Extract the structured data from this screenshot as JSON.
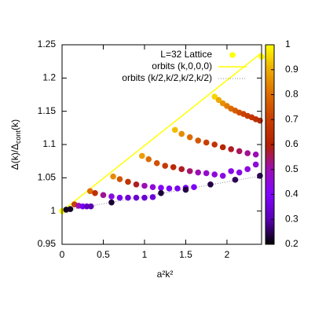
{
  "chart_data": {
    "type": "scatter",
    "xlabel": "a²k²",
    "ylabel": [
      "Δ(k)/Δ",
      "cont",
      "(k)"
    ],
    "xlim": [
      0,
      2.42
    ],
    "xticks": [
      0,
      0.5,
      1,
      1.5,
      2
    ],
    "ylim": [
      0.95,
      1.25
    ],
    "yticks": [
      0.95,
      1,
      1.05,
      1.1,
      1.15,
      1.2,
      1.25
    ],
    "cblim": [
      0.2,
      1
    ],
    "cbticks": [
      0.2,
      0.3,
      0.4,
      0.5,
      0.6,
      0.7,
      0.8,
      0.9,
      1
    ],
    "colormap": [
      "#000000",
      "#5a00b4",
      "#8004ff",
      "#9c0eb4",
      "#b42000",
      "#c93e00",
      "#dd6b00",
      "#eeab00",
      "#ffff00"
    ],
    "legend": "top-right",
    "series": [
      {
        "name": "L=32 Lattice",
        "color": "#ffff00",
        "x": [
          0,
          1.85,
          1.9,
          1.95,
          2.0,
          2.05,
          2.1,
          2.15,
          2.2,
          2.25,
          2.3,
          2.35,
          2.4,
          1.37,
          1.45,
          1.55,
          1.65,
          1.75,
          1.85,
          1.95,
          2.05,
          2.15,
          2.25,
          2.35,
          0.97,
          1.05,
          1.15,
          1.25,
          1.35,
          1.45,
          1.55,
          1.65,
          1.75,
          1.85,
          1.95,
          2.05,
          2.15,
          2.25,
          2.35,
          0.62,
          0.7,
          0.8,
          0.9,
          1.0,
          1.1,
          1.2,
          1.3,
          1.4,
          1.5,
          1.6,
          0.34,
          0.4,
          0.5,
          0.6,
          0.7,
          0.8,
          0.9,
          1.0,
          1.1,
          0.15,
          0.2,
          0.25,
          0.3,
          0.35,
          0.05,
          0.1,
          0.6,
          1.2,
          1.5,
          1.8,
          2.1,
          2.4,
          2.42
        ],
        "y": [
          1.0,
          1.172,
          1.167,
          1.162,
          1.158,
          1.154,
          1.151,
          1.148,
          1.146,
          1.143,
          1.141,
          1.138,
          1.136,
          1.122,
          1.116,
          1.111,
          1.106,
          1.103,
          1.1,
          1.096,
          1.093,
          1.09,
          1.087,
          1.085,
          1.083,
          1.078,
          1.072,
          1.068,
          1.066,
          1.063,
          1.06,
          1.058,
          1.057,
          1.055,
          1.053,
          1.06,
          1.058,
          1.063,
          1.07,
          1.052,
          1.048,
          1.044,
          1.04,
          1.038,
          1.036,
          1.035,
          1.034,
          1.034,
          1.035,
          1.036,
          1.03,
          1.027,
          1.024,
          1.022,
          1.02,
          1.02,
          1.02,
          1.02,
          1.021,
          1.01,
          1.008,
          1.007,
          1.007,
          1.007,
          1.002,
          1.003,
          1.013,
          1.027,
          1.032,
          1.04,
          1.047,
          1.053,
          1.232
        ],
        "c": [
          1.0,
          0.95,
          0.9,
          0.86,
          0.83,
          0.8,
          0.77,
          0.74,
          0.71,
          0.69,
          0.67,
          0.65,
          0.63,
          0.92,
          0.85,
          0.8,
          0.75,
          0.7,
          0.66,
          0.62,
          0.58,
          0.55,
          0.52,
          0.5,
          0.88,
          0.8,
          0.74,
          0.68,
          0.63,
          0.58,
          0.54,
          0.5,
          0.47,
          0.45,
          0.44,
          0.43,
          0.43,
          0.44,
          0.45,
          0.85,
          0.75,
          0.66,
          0.58,
          0.5,
          0.45,
          0.41,
          0.39,
          0.38,
          0.38,
          0.39,
          0.8,
          0.65,
          0.52,
          0.44,
          0.38,
          0.35,
          0.34,
          0.34,
          0.35,
          0.7,
          0.5,
          0.38,
          0.32,
          0.3,
          0.22,
          0.22,
          0.23,
          0.23,
          0.24,
          0.24,
          0.25,
          0.25,
          1.0
        ]
      }
    ],
    "lines": [
      {
        "name": "orbits (k,0,0,0)",
        "color": "#ffff00",
        "style": "solid",
        "x": [
          0,
          2.42
        ],
        "y": [
          1,
          1.238
        ]
      },
      {
        "name": "orbits (k/2,k/2,k/2,k/2)",
        "color": "#8c8c8c",
        "style": "dotted",
        "x": [
          0,
          2.42
        ],
        "y": [
          1,
          1.053
        ]
      }
    ]
  }
}
